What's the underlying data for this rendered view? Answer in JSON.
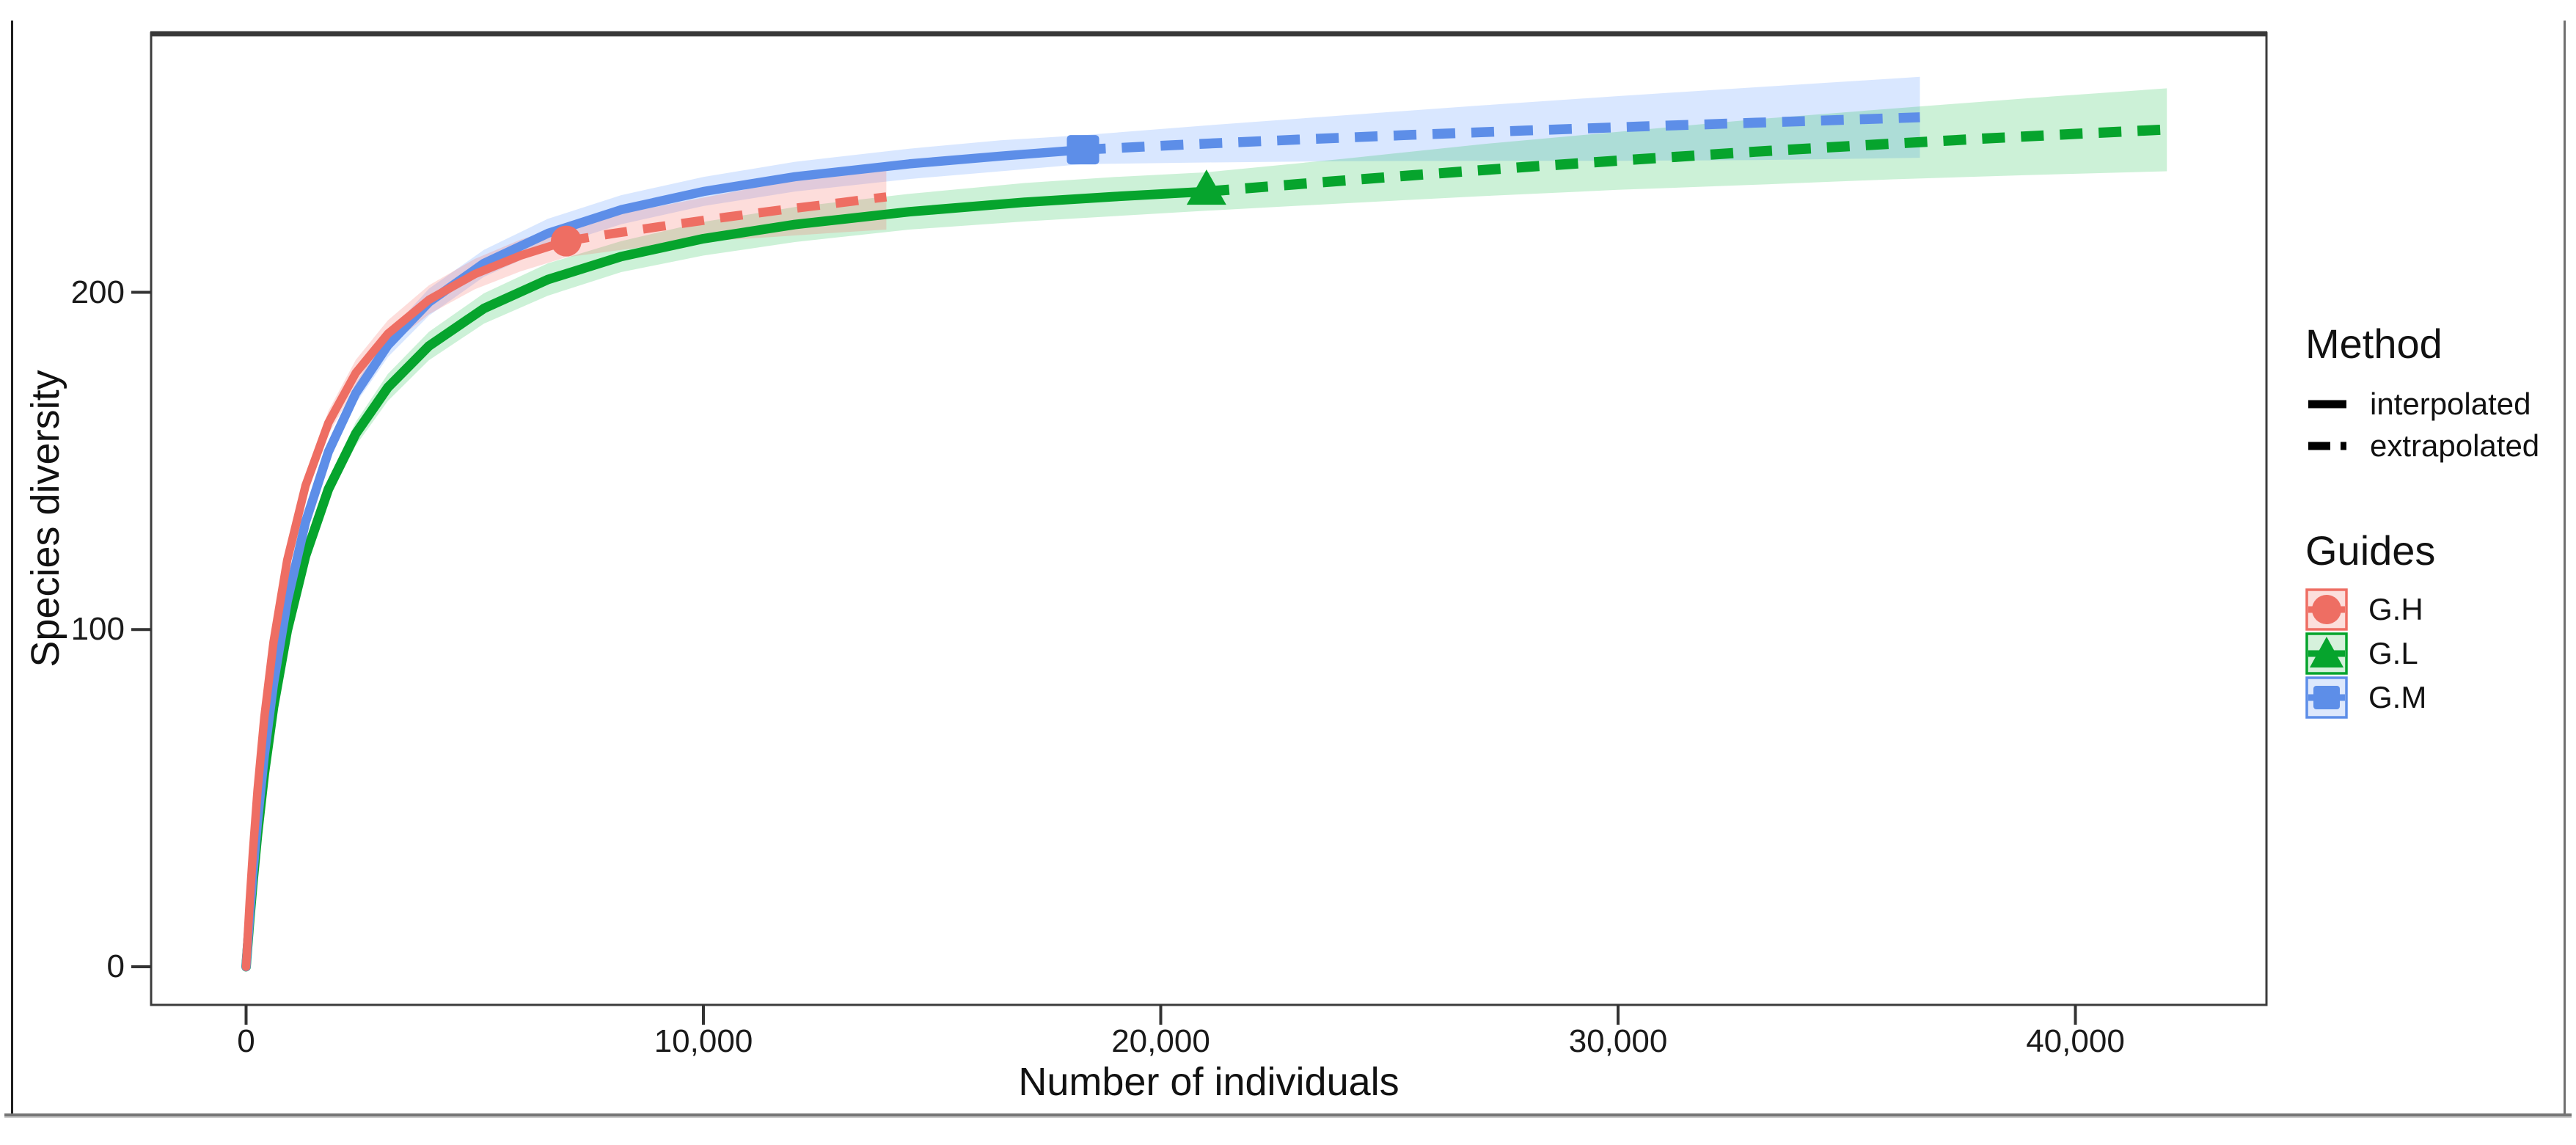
{
  "window": {
    "border_left_color": "#1f1f1f",
    "border_right_color": "#6f6f6f",
    "border_bottom_color": "#757575"
  },
  "axes": {
    "x_title": "Number of individuals",
    "y_title": "Species diversity",
    "x_ticks": [
      {
        "value": 0,
        "label": "0"
      },
      {
        "value": 10000,
        "label": "10,000"
      },
      {
        "value": 20000,
        "label": "20,000"
      },
      {
        "value": 30000,
        "label": "30,000"
      },
      {
        "value": 40000,
        "label": "40,000"
      }
    ],
    "y_ticks": [
      {
        "value": 0,
        "label": "0"
      },
      {
        "value": 100,
        "label": "100"
      },
      {
        "value": 200,
        "label": "200"
      }
    ]
  },
  "legend": {
    "method_title": "Method",
    "method_items": [
      {
        "label": "interpolated",
        "linetype": "solid"
      },
      {
        "label": "extrapolated",
        "linetype": "dashed"
      }
    ],
    "guides_title": "Guides",
    "guide_items": [
      {
        "label": "G.H",
        "marker": "circle"
      },
      {
        "label": "G.L",
        "marker": "triangle"
      },
      {
        "label": "G.M",
        "marker": "square"
      }
    ]
  },
  "chart_data": {
    "type": "line",
    "title": "",
    "xlabel": "Number of individuals",
    "ylabel": "Species diversity",
    "xlim": [
      -2077,
      44178
    ],
    "ylim": [
      -11.3,
      276.9
    ],
    "x_tick_values": [
      0,
      10000,
      20000,
      30000,
      40000
    ],
    "y_tick_values": [
      0,
      100,
      200
    ],
    "grid": false,
    "legend_position": "right",
    "frame_color": "#3c3c3c",
    "tick_color": "#333333",
    "series": [
      {
        "name": "G.H",
        "color": "#ee6e63",
        "fill": "rgba(248,113,104,0.24)",
        "fill_light": "#fcdfdc",
        "marker": "circle",
        "line_width": 11.5,
        "observed": [
          7000,
          215.2
        ],
        "interpolated": [
          [
            0,
            0
          ],
          [
            30,
            7.7
          ],
          [
            80,
            19.6
          ],
          [
            150,
            34.3
          ],
          [
            250,
            52.3
          ],
          [
            400,
            74.0
          ],
          [
            600,
            96.3
          ],
          [
            900,
            120.6
          ],
          [
            1300,
            142.7
          ],
          [
            1800,
            161.3
          ],
          [
            2400,
            176.1
          ],
          [
            3100,
            187.7
          ],
          [
            4000,
            197.8
          ],
          [
            5000,
            205.4
          ],
          [
            6000,
            210.9
          ],
          [
            7000,
            215.2
          ]
        ],
        "extrapolated": [
          [
            7000,
            215.2
          ],
          [
            8000,
            217.4
          ],
          [
            9200,
            219.8
          ],
          [
            10500,
            222.3
          ],
          [
            11800,
            224.6
          ],
          [
            13000,
            226.6
          ],
          [
            14000,
            228.3
          ]
        ],
        "ribbon": [
          [
            300,
            59.0,
            61.0
          ],
          [
            800,
            111.4,
            115.4
          ],
          [
            1300,
            140.0,
            145.4
          ],
          [
            1800,
            157.8,
            164.8
          ],
          [
            2400,
            172.2,
            180.0
          ],
          [
            3100,
            183.7,
            191.7
          ],
          [
            4000,
            193.5,
            202.1
          ],
          [
            5000,
            200.9,
            209.9
          ],
          [
            6000,
            206.2,
            215.6
          ],
          [
            7000,
            210.4,
            220.0
          ],
          [
            8500,
            213.1,
            224.1
          ],
          [
            10000,
            215.1,
            228.1
          ],
          [
            11500,
            216.4,
            232.0
          ],
          [
            12800,
            217.6,
            235.4
          ],
          [
            14000,
            218.6,
            238.2
          ]
        ]
      },
      {
        "name": "G.L",
        "color": "#06a42d",
        "fill": "rgba(0,186,56,0.20)",
        "fill_light": "#d6f1dc",
        "marker": "triangle",
        "line_width": 13,
        "observed": [
          21000,
          229.9
        ],
        "interpolated": [
          [
            0,
            0
          ],
          [
            30,
            5.5
          ],
          [
            80,
            14.1
          ],
          [
            150,
            25.2
          ],
          [
            250,
            39.3
          ],
          [
            400,
            57.3
          ],
          [
            600,
            77.0
          ],
          [
            900,
            99.7
          ],
          [
            1300,
            121.9
          ],
          [
            1800,
            141.6
          ],
          [
            2400,
            158.1
          ],
          [
            3100,
            171.8
          ],
          [
            4000,
            184.1
          ],
          [
            5200,
            195.2
          ],
          [
            6600,
            203.8
          ],
          [
            8200,
            210.6
          ],
          [
            10000,
            215.9
          ],
          [
            12000,
            220.1
          ],
          [
            14500,
            223.9
          ],
          [
            17000,
            226.7
          ],
          [
            19000,
            228.4
          ],
          [
            21000,
            229.9
          ]
        ],
        "extrapolated": [
          [
            21000,
            229.9
          ],
          [
            23000,
            232.1
          ],
          [
            25500,
            234.7
          ],
          [
            28000,
            237.2
          ],
          [
            30500,
            239.5
          ],
          [
            33000,
            241.7
          ],
          [
            35500,
            243.7
          ],
          [
            38000,
            245.6
          ],
          [
            40000,
            247.0
          ],
          [
            42000,
            248.3
          ]
        ],
        "ribbon": [
          [
            300,
            44.7,
            46.7
          ],
          [
            800,
            91.4,
            94.4
          ],
          [
            1300,
            119.4,
            124.4
          ],
          [
            1800,
            138.6,
            144.6
          ],
          [
            2400,
            154.6,
            161.6
          ],
          [
            3100,
            167.8,
            175.8
          ],
          [
            4000,
            179.9,
            188.3
          ],
          [
            5200,
            190.7,
            199.7
          ],
          [
            6600,
            199.0,
            208.6
          ],
          [
            8200,
            206.0,
            215.2
          ],
          [
            10000,
            210.9,
            220.9
          ],
          [
            12000,
            214.9,
            225.3
          ],
          [
            14500,
            218.6,
            229.2
          ],
          [
            17000,
            221.0,
            232.4
          ],
          [
            19000,
            222.6,
            234.2
          ],
          [
            21000,
            224.2,
            235.6
          ],
          [
            24000,
            226.4,
            239.6
          ],
          [
            27000,
            228.5,
            243.9
          ],
          [
            30000,
            230.4,
            247.6
          ],
          [
            33000,
            231.9,
            251.3
          ],
          [
            36000,
            233.5,
            254.5
          ],
          [
            39000,
            234.8,
            257.6
          ],
          [
            42000,
            235.9,
            260.5
          ]
        ]
      },
      {
        "name": "G.M",
        "color": "#5d8ee8",
        "fill": "rgba(97,156,255,0.24)",
        "fill_light": "#dde8fc",
        "marker": "square",
        "line_width": 12.5,
        "observed": [
          18300,
          242.3
        ],
        "interpolated": [
          [
            0,
            0
          ],
          [
            30,
            6.1
          ],
          [
            80,
            15.6
          ],
          [
            150,
            27.7
          ],
          [
            250,
            43.1
          ],
          [
            400,
            62.7
          ],
          [
            600,
            83.9
          ],
          [
            900,
            108.3
          ],
          [
            1300,
            131.9
          ],
          [
            1800,
            152.7
          ],
          [
            2400,
            170.1
          ],
          [
            3100,
            184.3
          ],
          [
            4000,
            197.1
          ],
          [
            5200,
            208.6
          ],
          [
            6600,
            217.5
          ],
          [
            8200,
            224.5
          ],
          [
            10000,
            229.9
          ],
          [
            12000,
            234.3
          ],
          [
            14500,
            238.1
          ],
          [
            16500,
            240.4
          ],
          [
            18300,
            242.3
          ]
        ],
        "extrapolated": [
          [
            18300,
            242.3
          ],
          [
            20500,
            243.8
          ],
          [
            23000,
            245.3
          ],
          [
            25500,
            246.7
          ],
          [
            28000,
            248.0
          ],
          [
            30500,
            249.2
          ],
          [
            33000,
            250.3
          ],
          [
            34800,
            251.1
          ],
          [
            36600,
            251.9
          ]
        ],
        "ribbon": [
          [
            300,
            49.1,
            51.1
          ],
          [
            800,
            99.5,
            102.5
          ],
          [
            1300,
            129.9,
            133.9
          ],
          [
            1800,
            150.2,
            155.2
          ],
          [
            2400,
            167.1,
            173.1
          ],
          [
            3100,
            180.8,
            187.8
          ],
          [
            4000,
            193.1,
            201.1
          ],
          [
            5200,
            204.6,
            212.6
          ],
          [
            6600,
            213.2,
            221.8
          ],
          [
            8200,
            220.2,
            228.8
          ],
          [
            10000,
            225.6,
            234.2
          ],
          [
            12000,
            229.9,
            238.7
          ],
          [
            14500,
            233.6,
            242.6
          ],
          [
            16500,
            235.9,
            245.1
          ],
          [
            18300,
            238.0,
            246.6
          ],
          [
            21000,
            238.5,
            249.5
          ],
          [
            24000,
            238.9,
            252.5
          ],
          [
            27000,
            239.0,
            255.4
          ],
          [
            30000,
            239.0,
            258.2
          ],
          [
            33000,
            239.2,
            260.8
          ],
          [
            36600,
            239.9,
            263.9
          ]
        ]
      }
    ]
  }
}
